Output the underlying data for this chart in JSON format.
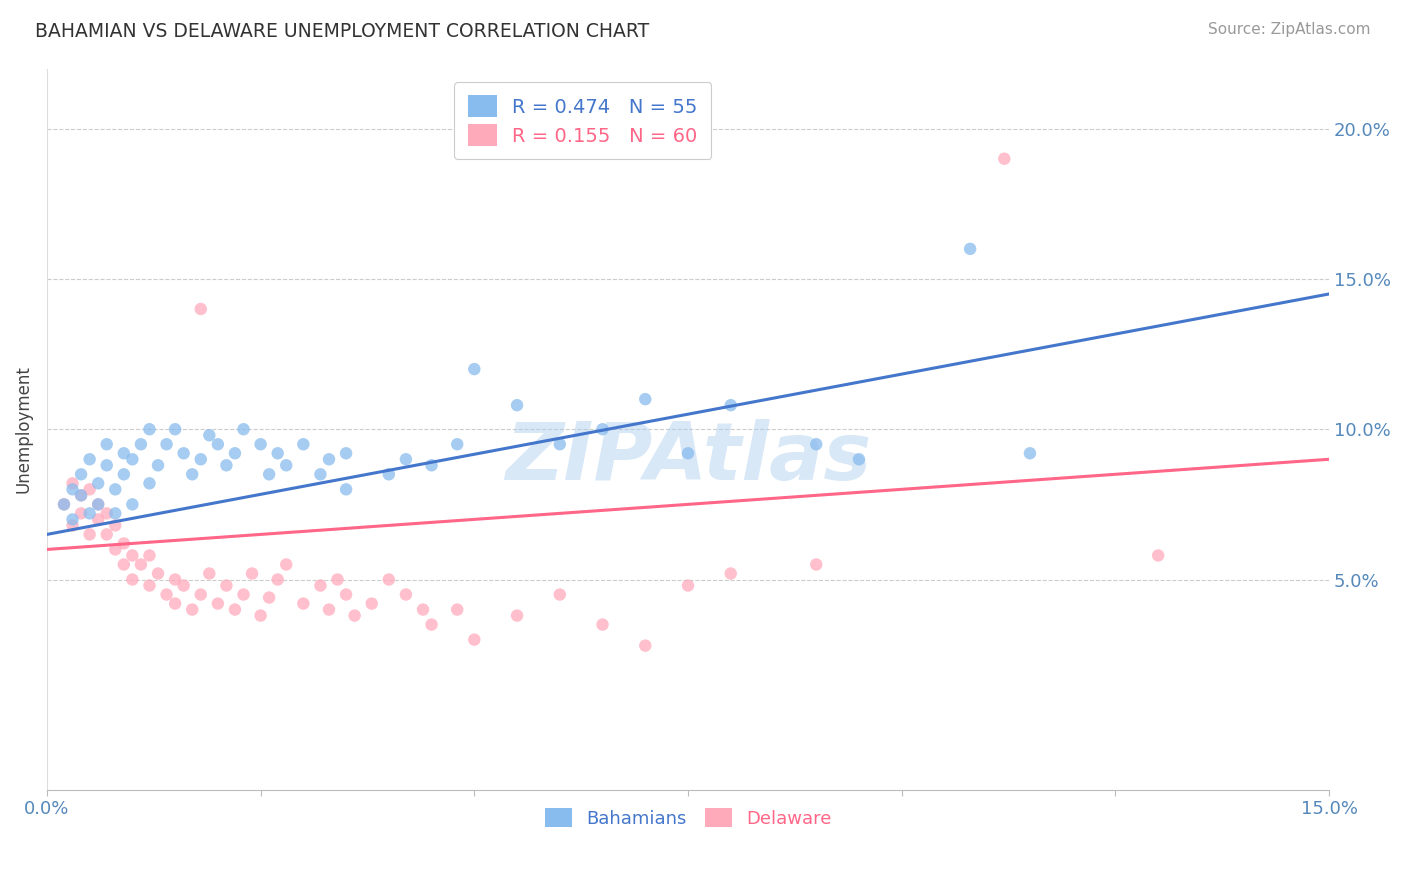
{
  "title": "BAHAMIAN VS DELAWARE UNEMPLOYMENT CORRELATION CHART",
  "source": "Source: ZipAtlas.com",
  "xlim": [
    0.0,
    0.15
  ],
  "ylim": [
    -0.02,
    0.22
  ],
  "yticks": [
    0.05,
    0.1,
    0.15,
    0.2
  ],
  "ytick_labels": [
    "5.0%",
    "10.0%",
    "15.0%",
    "20.0%"
  ],
  "xticks": [
    0.0,
    0.025,
    0.05,
    0.075,
    0.1,
    0.125,
    0.15
  ],
  "xtick_labels": [
    "0.0%",
    "",
    "",
    "",
    "",
    "",
    "15.0%"
  ],
  "blue_R": 0.474,
  "blue_N": 55,
  "pink_R": 0.155,
  "pink_N": 60,
  "blue_color": "#88BBEE",
  "pink_color": "#FFAABB",
  "blue_line_color": "#4477CC",
  "pink_line_color": "#FF6688",
  "watermark": "ZIPAtlas",
  "watermark_color": "#AACCEE",
  "legend_label_blue": "R = 0.474   N = 55",
  "legend_label_pink": "R = 0.155   N = 60",
  "blue_line": [
    0.0,
    0.065,
    0.15,
    0.145
  ],
  "pink_line": [
    0.0,
    0.06,
    0.15,
    0.09
  ],
  "blue_scatter": [
    [
      0.002,
      0.075
    ],
    [
      0.003,
      0.08
    ],
    [
      0.003,
      0.07
    ],
    [
      0.004,
      0.085
    ],
    [
      0.004,
      0.078
    ],
    [
      0.005,
      0.072
    ],
    [
      0.005,
      0.09
    ],
    [
      0.006,
      0.082
    ],
    [
      0.006,
      0.075
    ],
    [
      0.007,
      0.088
    ],
    [
      0.007,
      0.095
    ],
    [
      0.008,
      0.08
    ],
    [
      0.008,
      0.072
    ],
    [
      0.009,
      0.092
    ],
    [
      0.009,
      0.085
    ],
    [
      0.01,
      0.09
    ],
    [
      0.01,
      0.075
    ],
    [
      0.011,
      0.095
    ],
    [
      0.012,
      0.082
    ],
    [
      0.012,
      0.1
    ],
    [
      0.013,
      0.088
    ],
    [
      0.014,
      0.095
    ],
    [
      0.015,
      0.1
    ],
    [
      0.016,
      0.092
    ],
    [
      0.017,
      0.085
    ],
    [
      0.018,
      0.09
    ],
    [
      0.019,
      0.098
    ],
    [
      0.02,
      0.095
    ],
    [
      0.021,
      0.088
    ],
    [
      0.022,
      0.092
    ],
    [
      0.023,
      0.1
    ],
    [
      0.025,
      0.095
    ],
    [
      0.026,
      0.085
    ],
    [
      0.027,
      0.092
    ],
    [
      0.028,
      0.088
    ],
    [
      0.03,
      0.095
    ],
    [
      0.032,
      0.085
    ],
    [
      0.033,
      0.09
    ],
    [
      0.035,
      0.08
    ],
    [
      0.035,
      0.092
    ],
    [
      0.04,
      0.085
    ],
    [
      0.042,
      0.09
    ],
    [
      0.045,
      0.088
    ],
    [
      0.048,
      0.095
    ],
    [
      0.05,
      0.12
    ],
    [
      0.055,
      0.108
    ],
    [
      0.06,
      0.095
    ],
    [
      0.065,
      0.1
    ],
    [
      0.07,
      0.11
    ],
    [
      0.075,
      0.092
    ],
    [
      0.08,
      0.108
    ],
    [
      0.09,
      0.095
    ],
    [
      0.095,
      0.09
    ],
    [
      0.108,
      0.16
    ],
    [
      0.115,
      0.092
    ]
  ],
  "pink_scatter": [
    [
      0.002,
      0.075
    ],
    [
      0.003,
      0.082
    ],
    [
      0.003,
      0.068
    ],
    [
      0.004,
      0.078
    ],
    [
      0.004,
      0.072
    ],
    [
      0.005,
      0.065
    ],
    [
      0.005,
      0.08
    ],
    [
      0.006,
      0.07
    ],
    [
      0.006,
      0.075
    ],
    [
      0.007,
      0.065
    ],
    [
      0.007,
      0.072
    ],
    [
      0.008,
      0.068
    ],
    [
      0.008,
      0.06
    ],
    [
      0.009,
      0.055
    ],
    [
      0.009,
      0.062
    ],
    [
      0.01,
      0.058
    ],
    [
      0.01,
      0.05
    ],
    [
      0.011,
      0.055
    ],
    [
      0.012,
      0.048
    ],
    [
      0.012,
      0.058
    ],
    [
      0.013,
      0.052
    ],
    [
      0.014,
      0.045
    ],
    [
      0.015,
      0.05
    ],
    [
      0.015,
      0.042
    ],
    [
      0.016,
      0.048
    ],
    [
      0.017,
      0.04
    ],
    [
      0.018,
      0.045
    ],
    [
      0.018,
      0.14
    ],
    [
      0.019,
      0.052
    ],
    [
      0.02,
      0.042
    ],
    [
      0.021,
      0.048
    ],
    [
      0.022,
      0.04
    ],
    [
      0.023,
      0.045
    ],
    [
      0.024,
      0.052
    ],
    [
      0.025,
      0.038
    ],
    [
      0.026,
      0.044
    ],
    [
      0.027,
      0.05
    ],
    [
      0.028,
      0.055
    ],
    [
      0.03,
      0.042
    ],
    [
      0.032,
      0.048
    ],
    [
      0.033,
      0.04
    ],
    [
      0.034,
      0.05
    ],
    [
      0.035,
      0.045
    ],
    [
      0.036,
      0.038
    ],
    [
      0.038,
      0.042
    ],
    [
      0.04,
      0.05
    ],
    [
      0.042,
      0.045
    ],
    [
      0.044,
      0.04
    ],
    [
      0.045,
      0.035
    ],
    [
      0.048,
      0.04
    ],
    [
      0.05,
      0.03
    ],
    [
      0.055,
      0.038
    ],
    [
      0.06,
      0.045
    ],
    [
      0.065,
      0.035
    ],
    [
      0.07,
      0.028
    ],
    [
      0.075,
      0.048
    ],
    [
      0.08,
      0.052
    ],
    [
      0.09,
      0.055
    ],
    [
      0.112,
      0.19
    ],
    [
      0.13,
      0.058
    ]
  ]
}
